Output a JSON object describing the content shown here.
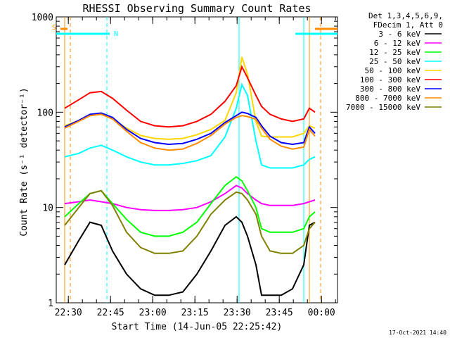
{
  "chart_data": {
    "type": "line",
    "title": "RHESSI Observing Summary Count Rates",
    "xlabel": "Start Time (14-Jun-05 22:25:42)",
    "ylabel": "Count Rate (s⁻¹ detector⁻¹)",
    "yscale": "log",
    "ylim": [
      1,
      1000
    ],
    "xlim_minutes_after_2225": [
      0,
      100
    ],
    "x_ticks": [
      "22:30",
      "22:45",
      "23:00",
      "23:15",
      "23:30",
      "23:45",
      "00:00"
    ],
    "y_ticks": [
      "1",
      "10",
      "100",
      "1000"
    ],
    "legend": {
      "placement": "top-right, outside plot",
      "header": [
        "Det 1,3,4,5,6,9,",
        "FDecim 1, Att 0"
      ]
    },
    "annotations": {
      "flags": [
        "S",
        "N"
      ],
      "timestamp": "17-Oct-2021 14:40"
    },
    "x_minutes": [
      3,
      8,
      12,
      16,
      20,
      25,
      30,
      35,
      40,
      45,
      50,
      55,
      60,
      64,
      66,
      68,
      71,
      73,
      76,
      80,
      84,
      88,
      90,
      92
    ],
    "series": [
      {
        "name": "3 - 6 keV",
        "color": "#000000",
        "values": [
          2.5,
          4.5,
          7,
          6.5,
          3.5,
          2,
          1.4,
          1.2,
          1.2,
          1.3,
          2.0,
          3.5,
          6.5,
          8,
          7,
          5,
          2.5,
          1.2,
          1.2,
          1.2,
          1.4,
          2.5,
          6.5,
          7
        ]
      },
      {
        "name": "6 - 12 keV",
        "color": "#ff00ff",
        "values": [
          11,
          11.5,
          12,
          11.5,
          11,
          10,
          9.5,
          9.3,
          9.3,
          9.5,
          10,
          11.5,
          14,
          17,
          16,
          14,
          12,
          11,
          10.5,
          10.5,
          10.5,
          11,
          11.5,
          12
        ]
      },
      {
        "name": "12 - 25 keV",
        "color": "#00ff00",
        "values": [
          8,
          11,
          14,
          15,
          11,
          7.5,
          5.5,
          5,
          5,
          5.5,
          7,
          11,
          17,
          21,
          19,
          15,
          10,
          6,
          5.5,
          5.5,
          5.5,
          6,
          8,
          9
        ]
      },
      {
        "name": "25 - 50 keV",
        "color": "#00ffff",
        "values": [
          34,
          37,
          42,
          45,
          40,
          34,
          30,
          28,
          28,
          29,
          31,
          35,
          55,
          110,
          195,
          150,
          50,
          28,
          26,
          26,
          26,
          28,
          32,
          34
        ]
      },
      {
        "name": "50 - 100 keV",
        "color": "#ffd700",
        "values": [
          72,
          82,
          92,
          95,
          85,
          68,
          57,
          53,
          52,
          53,
          58,
          66,
          82,
          160,
          380,
          250,
          80,
          56,
          55,
          55,
          55,
          60,
          72,
          68
        ]
      },
      {
        "name": "100 - 300 keV",
        "color": "#ff0000",
        "values": [
          110,
          135,
          160,
          165,
          140,
          105,
          80,
          72,
          70,
          72,
          80,
          95,
          130,
          190,
          300,
          230,
          150,
          115,
          95,
          85,
          80,
          85,
          110,
          100
        ]
      },
      {
        "name": "300 - 800 keV",
        "color": "#0000ff",
        "values": [
          70,
          82,
          95,
          98,
          88,
          66,
          53,
          48,
          46,
          47,
          52,
          60,
          78,
          92,
          100,
          97,
          88,
          72,
          56,
          48,
          46,
          48,
          70,
          60
        ]
      },
      {
        "name": "800 - 7000 keV",
        "color": "#ff8c00",
        "values": [
          68,
          80,
          92,
          95,
          85,
          63,
          48,
          42,
          40,
          41,
          47,
          57,
          75,
          88,
          92,
          90,
          84,
          68,
          52,
          44,
          41,
          43,
          66,
          56
        ]
      },
      {
        "name": "7000 - 15000 keV",
        "color": "#808000",
        "values": [
          6.5,
          10,
          14,
          15,
          10.5,
          5.5,
          3.8,
          3.3,
          3.3,
          3.5,
          5,
          8.5,
          12,
          14.5,
          14,
          12,
          8.5,
          5,
          3.5,
          3.3,
          3.3,
          4,
          6,
          7
        ]
      }
    ],
    "markers": [
      {
        "label": "S",
        "color": "#ff8c00",
        "x_minutes": [
          3,
          5,
          90,
          94
        ]
      },
      {
        "label": "N",
        "color": "#00ffff",
        "x_minutes": [
          18,
          65,
          88
        ]
      }
    ]
  }
}
